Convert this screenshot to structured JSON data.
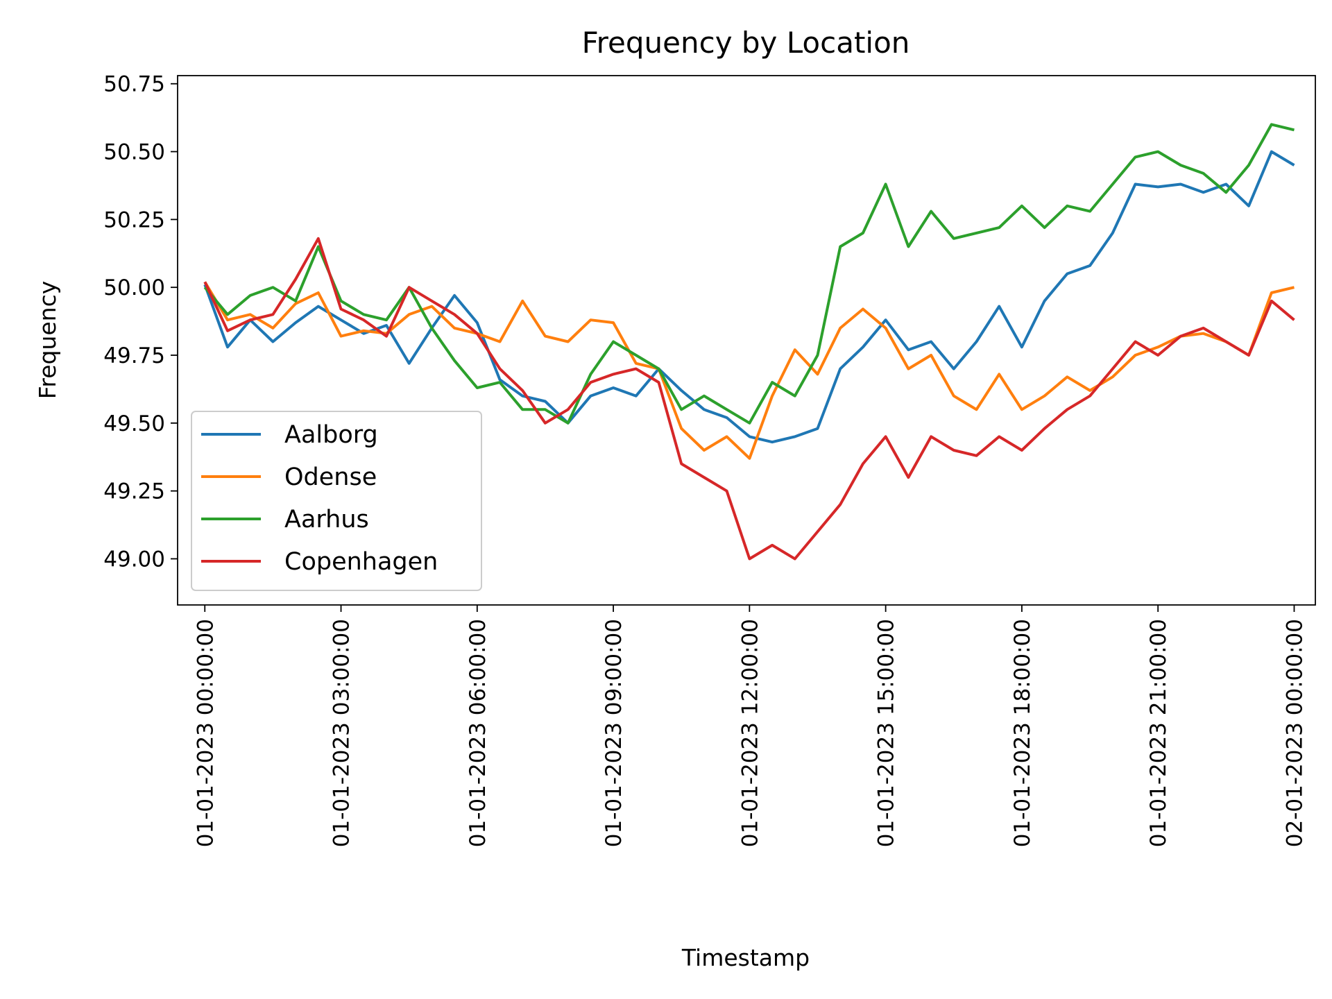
{
  "chart_data": {
    "type": "line",
    "title": "Frequency by Location",
    "xlabel": "Timestamp",
    "ylabel": "Frequency",
    "ylim": [
      48.83,
      50.78
    ],
    "xlim": [
      "01-01-2023 23:36:00 prev",
      "02-01-2023 00:28:00"
    ],
    "x_range_minutes": [
      -36,
      1468
    ],
    "y_ticks": [
      49.0,
      49.25,
      49.5,
      49.75,
      50.0,
      50.25,
      50.5,
      50.75
    ],
    "y_tick_labels": [
      "49.00",
      "49.25",
      "49.50",
      "49.75",
      "50.00",
      "50.25",
      "50.50",
      "50.75"
    ],
    "x_tick_labels": [
      "01-01-2023 00:00:00",
      "01-01-2023 03:00:00",
      "01-01-2023 06:00:00",
      "01-01-2023 09:00:00",
      "01-01-2023 12:00:00",
      "01-01-2023 15:00:00",
      "01-01-2023 18:00:00",
      "01-01-2023 21:00:00",
      "02-01-2023 00:00:00"
    ],
    "grid": false,
    "legend_position": "lower-left",
    "x": [
      "01-01-2023 00:00",
      "01-01-2023 00:30",
      "01-01-2023 01:00",
      "01-01-2023 01:30",
      "01-01-2023 02:00",
      "01-01-2023 02:30",
      "01-01-2023 03:00",
      "01-01-2023 03:30",
      "01-01-2023 04:00",
      "01-01-2023 04:30",
      "01-01-2023 05:00",
      "01-01-2023 05:30",
      "01-01-2023 06:00",
      "01-01-2023 06:30",
      "01-01-2023 07:00",
      "01-01-2023 07:30",
      "01-01-2023 08:00",
      "01-01-2023 08:30",
      "01-01-2023 09:00",
      "01-01-2023 09:30",
      "01-01-2023 10:00",
      "01-01-2023 10:30",
      "01-01-2023 11:00",
      "01-01-2023 11:30",
      "01-01-2023 12:00",
      "01-01-2023 12:30",
      "01-01-2023 13:00",
      "01-01-2023 13:30",
      "01-01-2023 14:00",
      "01-01-2023 14:30",
      "01-01-2023 15:00",
      "01-01-2023 15:30",
      "01-01-2023 16:00",
      "01-01-2023 16:30",
      "01-01-2023 17:00",
      "01-01-2023 17:30",
      "01-01-2023 18:00",
      "01-01-2023 18:30",
      "01-01-2023 19:00",
      "01-01-2023 19:30",
      "01-01-2023 20:00",
      "01-01-2023 20:30",
      "01-01-2023 21:00",
      "01-01-2023 21:30",
      "01-01-2023 22:00",
      "01-01-2023 22:30",
      "01-01-2023 23:00",
      "01-01-2023 23:30",
      "02-01-2023 00:00"
    ],
    "series": [
      {
        "name": "Aalborg",
        "color": "#1f77b4",
        "values": [
          50.01,
          49.78,
          49.88,
          49.8,
          49.87,
          49.93,
          49.88,
          49.83,
          49.86,
          49.72,
          49.85,
          49.97,
          49.87,
          49.66,
          49.6,
          49.58,
          49.5,
          49.6,
          49.63,
          49.6,
          49.7,
          49.62,
          49.55,
          49.52,
          49.45,
          49.43,
          49.45,
          49.48,
          49.7,
          49.78,
          49.88,
          49.77,
          49.8,
          49.7,
          49.8,
          49.93,
          49.78,
          49.95,
          50.05,
          50.08,
          50.2,
          50.38,
          50.37,
          50.38,
          50.35,
          50.38,
          50.3,
          50.5,
          50.45
        ]
      },
      {
        "name": "Odense",
        "color": "#ff7f0e",
        "values": [
          50.02,
          49.88,
          49.9,
          49.85,
          49.94,
          49.98,
          49.82,
          49.84,
          49.83,
          49.9,
          49.93,
          49.85,
          49.83,
          49.8,
          49.95,
          49.82,
          49.8,
          49.88,
          49.87,
          49.72,
          49.7,
          49.48,
          49.4,
          49.45,
          49.37,
          49.6,
          49.77,
          49.68,
          49.85,
          49.92,
          49.85,
          49.7,
          49.75,
          49.6,
          49.55,
          49.68,
          49.55,
          49.6,
          49.67,
          49.62,
          49.67,
          49.75,
          49.78,
          49.82,
          49.83,
          49.8,
          49.75,
          49.98,
          50.0
        ]
      },
      {
        "name": "Aarhus",
        "color": "#2ca02c",
        "values": [
          50.0,
          49.9,
          49.97,
          50.0,
          49.95,
          50.15,
          49.95,
          49.9,
          49.88,
          50.0,
          49.85,
          49.73,
          49.63,
          49.65,
          49.55,
          49.55,
          49.5,
          49.68,
          49.8,
          49.75,
          49.7,
          49.55,
          49.6,
          49.55,
          49.5,
          49.65,
          49.6,
          49.75,
          50.15,
          50.2,
          50.38,
          50.15,
          50.28,
          50.18,
          50.2,
          50.22,
          50.3,
          50.22,
          50.3,
          50.28,
          50.38,
          50.48,
          50.5,
          50.45,
          50.42,
          50.35,
          50.45,
          50.6,
          50.58
        ]
      },
      {
        "name": "Copenhagen",
        "color": "#d62728",
        "values": [
          50.02,
          49.84,
          49.88,
          49.9,
          50.03,
          50.18,
          49.92,
          49.88,
          49.82,
          50.0,
          49.95,
          49.9,
          49.83,
          49.7,
          49.62,
          49.5,
          49.55,
          49.65,
          49.68,
          49.7,
          49.65,
          49.35,
          49.3,
          49.25,
          49.0,
          49.05,
          49.0,
          49.1,
          49.2,
          49.35,
          49.45,
          49.3,
          49.45,
          49.4,
          49.38,
          49.45,
          49.4,
          49.48,
          49.55,
          49.6,
          49.7,
          49.8,
          49.75,
          49.82,
          49.85,
          49.8,
          49.75,
          49.95,
          49.88
        ]
      }
    ]
  }
}
